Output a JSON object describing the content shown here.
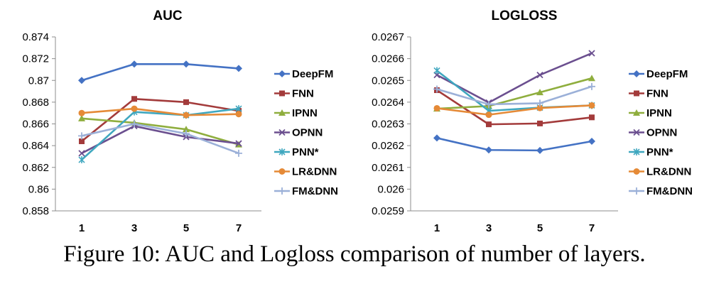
{
  "caption": "Figure 10: AUC and Logloss comparison of number of layers.",
  "colors": {
    "DeepFM": "#4472C4",
    "FNN": "#A33B3B",
    "IPNN": "#8FAE3E",
    "OPNN": "#6B4F8F",
    "PNN*": "#3FA7BF",
    "LR&DNN": "#E58A37",
    "FM&DNN": "#9BB0D8"
  },
  "chart_data": [
    {
      "type": "line",
      "title": "AUC",
      "xlabel": "",
      "ylabel": "",
      "x": [
        "1",
        "3",
        "5",
        "7"
      ],
      "ylim": [
        0.858,
        0.874
      ],
      "yticks": [
        "0.858",
        "0.86",
        "0.862",
        "0.864",
        "0.866",
        "0.868",
        "0.87",
        "0.872",
        "0.874"
      ],
      "grid": false,
      "legend": "right",
      "series": [
        {
          "name": "DeepFM",
          "marker": "diamond",
          "values": [
            0.87,
            0.8715,
            0.8715,
            0.8711
          ]
        },
        {
          "name": "FNN",
          "marker": "square",
          "values": [
            0.8644,
            0.8683,
            0.868,
            0.8672
          ]
        },
        {
          "name": "IPNN",
          "marker": "triangle",
          "values": [
            0.8665,
            0.8661,
            0.8655,
            0.8641
          ]
        },
        {
          "name": "OPNN",
          "marker": "x",
          "values": [
            0.8633,
            0.8658,
            0.8648,
            0.8642
          ]
        },
        {
          "name": "PNN*",
          "marker": "star",
          "values": [
            0.8627,
            0.8671,
            0.8668,
            0.8674
          ]
        },
        {
          "name": "LR&DNN",
          "marker": "circle",
          "values": [
            0.867,
            0.8674,
            0.8668,
            0.8669
          ]
        },
        {
          "name": "FM&DNN",
          "marker": "plus",
          "values": [
            0.8649,
            0.866,
            0.8651,
            0.8633
          ]
        }
      ]
    },
    {
      "type": "line",
      "title": "LOGLOSS",
      "xlabel": "",
      "ylabel": "",
      "x": [
        "1",
        "3",
        "5",
        "7"
      ],
      "ylim": [
        0.0259,
        0.0267
      ],
      "yticks": [
        "0.0259",
        "0.026",
        "0.0261",
        "0.0262",
        "0.0263",
        "0.0264",
        "0.0265",
        "0.0266",
        "0.0267"
      ],
      "grid": false,
      "legend": "right",
      "series": [
        {
          "name": "DeepFM",
          "marker": "diamond",
          "values": [
            0.026235,
            0.02618,
            0.026178,
            0.02622
          ]
        },
        {
          "name": "FNN",
          "marker": "square",
          "values": [
            0.026455,
            0.026298,
            0.026302,
            0.02633
          ]
        },
        {
          "name": "IPNN",
          "marker": "triangle",
          "values": [
            0.02637,
            0.026382,
            0.026445,
            0.02651
          ]
        },
        {
          "name": "OPNN",
          "marker": "x",
          "values": [
            0.026525,
            0.026398,
            0.026525,
            0.026625
          ]
        },
        {
          "name": "PNN*",
          "marker": "star",
          "values": [
            0.026545,
            0.02636,
            0.026375,
            0.026385
          ]
        },
        {
          "name": "LR&DNN",
          "marker": "circle",
          "values": [
            0.026372,
            0.026342,
            0.026373,
            0.026385
          ]
        },
        {
          "name": "FM&DNN",
          "marker": "plus",
          "values": [
            0.02646,
            0.02639,
            0.026395,
            0.026472
          ]
        }
      ]
    }
  ]
}
